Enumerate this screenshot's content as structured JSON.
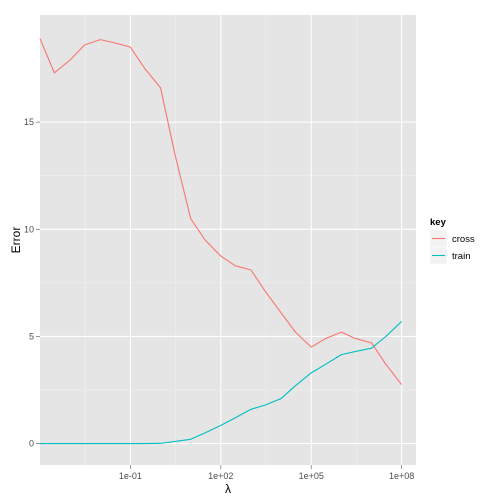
{
  "chart_data": {
    "type": "line",
    "xlabel": "λ",
    "ylabel": "Error",
    "x_scale": "log10",
    "x_ticks": [
      {
        "value": 0.1,
        "label": "1e-01"
      },
      {
        "value": 100,
        "label": "1e+02"
      },
      {
        "value": 100000,
        "label": "1e+05"
      },
      {
        "value": 100000000,
        "label": "1e+08"
      }
    ],
    "y_ticks": [
      0,
      5,
      10,
      15
    ],
    "xlim": [
      0.0001,
      300000000
    ],
    "ylim": [
      -1,
      20
    ],
    "grid": true,
    "legend": {
      "title": "key",
      "placement": "right"
    },
    "series": [
      {
        "name": "cross",
        "color": "#f8766d",
        "x": [
          0.0001,
          0.0003,
          0.001,
          0.003,
          0.01,
          0.03,
          0.1,
          0.3,
          1,
          3,
          10,
          30,
          100,
          300,
          1000,
          3000,
          10000,
          30000,
          100000,
          300000,
          1000000,
          3000000,
          10000000,
          30000000,
          100000000
        ],
        "values": [
          18.9,
          17.3,
          17.9,
          18.6,
          18.85,
          18.7,
          18.5,
          17.5,
          16.6,
          13.5,
          10.5,
          9.5,
          8.75,
          8.3,
          8.1,
          7.1,
          6.1,
          5.2,
          4.5,
          4.9,
          5.2,
          4.9,
          4.7,
          3.7,
          2.75
        ]
      },
      {
        "name": "train",
        "color": "#00bfc4",
        "x": [
          0.0001,
          0.0003,
          0.001,
          0.003,
          0.01,
          0.03,
          0.1,
          0.3,
          1,
          3,
          10,
          30,
          100,
          300,
          1000,
          3000,
          10000,
          30000,
          100000,
          300000,
          1000000,
          3000000,
          10000000,
          30000000,
          100000000
        ],
        "values": [
          0,
          0,
          0,
          0,
          0,
          0,
          0,
          0,
          0.01,
          0.1,
          0.2,
          0.5,
          0.85,
          1.2,
          1.6,
          1.8,
          2.1,
          2.7,
          3.3,
          3.7,
          4.15,
          4.3,
          4.45,
          5.0,
          5.7
        ]
      }
    ]
  }
}
